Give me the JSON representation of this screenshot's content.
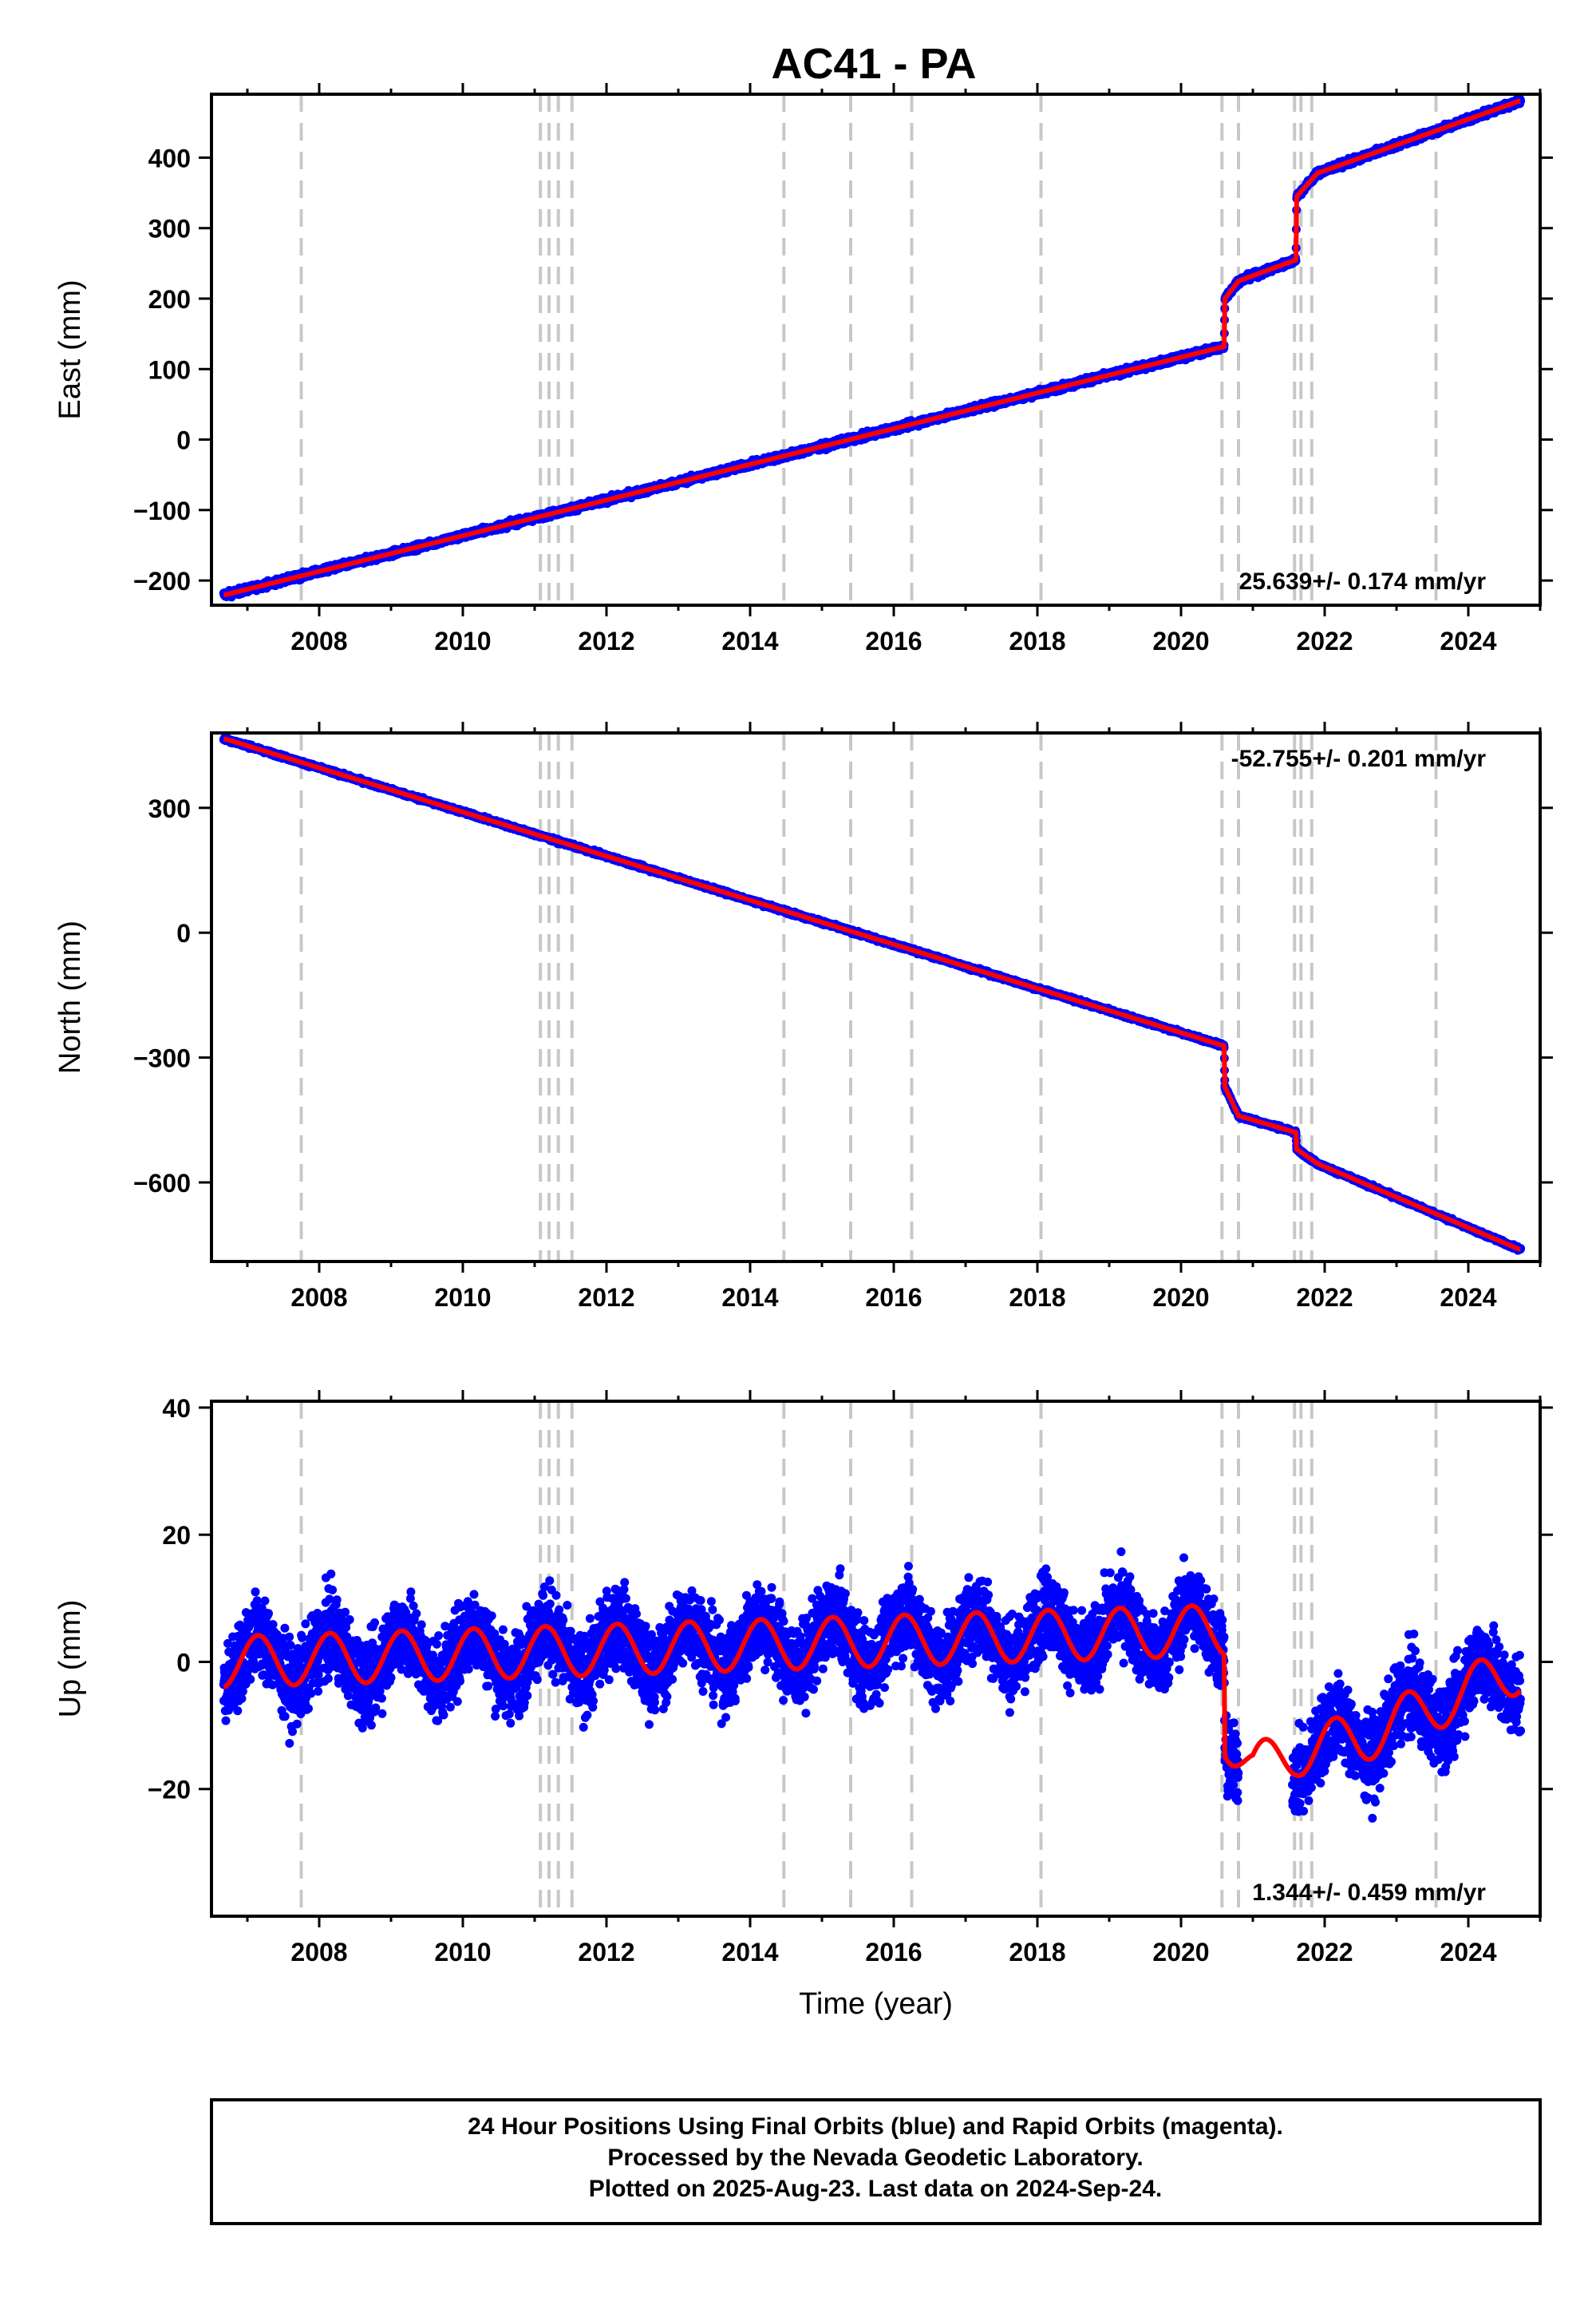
{
  "title": "AC41 - PA",
  "footer": {
    "lines": [
      "24 Hour Positions Using Final Orbits (blue) and Rapid Orbits (magenta).",
      "Processed by the Nevada Geodetic Laboratory.",
      "Plotted on 2025-Aug-23. Last data on 2024-Sep-24."
    ]
  },
  "colors": {
    "points": "#0000ff",
    "model": "#ff0000",
    "event_lines": "#c8c8c8"
  },
  "chart_data": [
    {
      "type": "scatter",
      "ylabel": "East (mm)",
      "xlabel": "",
      "xlim": [
        2006.5,
        2025.0
      ],
      "ylim": [
        -235,
        490
      ],
      "xticks": [
        "2008",
        "2010",
        "2012",
        "2014",
        "2016",
        "2018",
        "2020",
        "2022",
        "2024"
      ],
      "yticks": [
        "400",
        "300",
        "200",
        "100",
        "0",
        "−100",
        "−200"
      ],
      "ytick_values": [
        400,
        300,
        200,
        100,
        0,
        -100,
        -200
      ],
      "rate_text": "25.639+/- 0.174 mm/yr",
      "rate_position": "bottom-right",
      "model_knots": [
        [
          2006.7,
          -220
        ],
        [
          2020.6,
          132
        ],
        [
          2020.61,
          200
        ],
        [
          2020.8,
          225
        ],
        [
          2021.6,
          255
        ],
        [
          2021.61,
          345
        ],
        [
          2021.9,
          378
        ],
        [
          2024.7,
          480
        ]
      ],
      "noise": 3
    },
    {
      "type": "scatter",
      "ylabel": "North (mm)",
      "xlabel": "",
      "xlim": [
        2006.5,
        2025.0
      ],
      "ylim": [
        -790,
        480
      ],
      "xticks": [
        "2008",
        "2010",
        "2012",
        "2014",
        "2016",
        "2018",
        "2020",
        "2022",
        "2024"
      ],
      "yticks": [
        "300",
        "0",
        "−300",
        "−600"
      ],
      "ytick_values": [
        300,
        0,
        -300,
        -600
      ],
      "rate_text": "-52.755+/- 0.201 mm/yr",
      "rate_position": "top-right",
      "model_knots": [
        [
          2006.7,
          465
        ],
        [
          2020.6,
          -272
        ],
        [
          2020.61,
          -370
        ],
        [
          2020.8,
          -440
        ],
        [
          2021.6,
          -480
        ],
        [
          2021.61,
          -520
        ],
        [
          2021.9,
          -555
        ],
        [
          2024.7,
          -760
        ]
      ],
      "noise": 3
    },
    {
      "type": "scatter",
      "ylabel": "Up (mm)",
      "xlabel": "Time (year)",
      "xlim": [
        2006.5,
        2025.0
      ],
      "ylim": [
        -40,
        41
      ],
      "xticks": [
        "2008",
        "2010",
        "2012",
        "2014",
        "2016",
        "2018",
        "2020",
        "2022",
        "2024"
      ],
      "yticks": [
        "40",
        "20",
        "0",
        "−20"
      ],
      "ytick_values": [
        40,
        20,
        0,
        -20
      ],
      "rate_text": "1.344+/- 0.459 mm/yr",
      "rate_position": "bottom-right",
      "model_knots": [
        [
          2006.7,
          0
        ],
        [
          2020.6,
          5
        ],
        [
          2020.61,
          -11
        ],
        [
          2021.0,
          -17
        ],
        [
          2021.6,
          -14
        ],
        [
          2022.5,
          -12
        ],
        [
          2024.7,
          -1
        ]
      ],
      "seasonal_amplitude": 4,
      "noise": 4.5
    }
  ],
  "event_lines": [
    2007.75,
    2011.08,
    2011.2,
    2011.33,
    2011.52,
    2014.47,
    2015.4,
    2016.25,
    2018.05,
    2020.57,
    2020.8,
    2021.58,
    2021.67,
    2021.82,
    2023.55
  ],
  "data_start": 2006.67,
  "data_end": 2024.73
}
